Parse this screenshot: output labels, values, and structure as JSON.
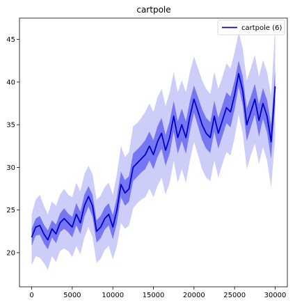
{
  "chart_data": {
    "type": "line",
    "title": "cartpole",
    "xlabel": "",
    "ylabel": "",
    "xlim": [
      -1500,
      31500
    ],
    "ylim": [
      16,
      47.5
    ],
    "x_ticks": [
      0,
      5000,
      10000,
      15000,
      20000,
      25000,
      30000
    ],
    "x_tick_labels": [
      "0",
      "5000",
      "10000",
      "15000",
      "20000",
      "25000",
      "30000"
    ],
    "y_ticks": [
      20,
      25,
      30,
      35,
      40,
      45
    ],
    "y_tick_labels": [
      "20",
      "25",
      "30",
      "35",
      "40",
      "45"
    ],
    "grid": false,
    "legend": {
      "placement": "top-right",
      "entries": [
        "cartpole (6)"
      ]
    },
    "colors": {
      "line": "#0000cc",
      "inner_band": "#5a5af0",
      "outer_band": "#c8c8f8"
    },
    "series": [
      {
        "name": "cartpole (6)",
        "x": [
          0,
          500,
          1000,
          1500,
          2000,
          2500,
          3000,
          3500,
          4000,
          4500,
          5000,
          5500,
          6000,
          6500,
          7000,
          7500,
          8000,
          8500,
          9000,
          9500,
          10000,
          10500,
          11000,
          11500,
          12000,
          12500,
          13000,
          13500,
          14000,
          14500,
          15000,
          15500,
          16000,
          16500,
          17000,
          17500,
          18000,
          18500,
          19000,
          19500,
          20000,
          20500,
          21000,
          21500,
          22000,
          22500,
          23000,
          23500,
          24000,
          24500,
          25000,
          25500,
          26000,
          26500,
          27000,
          27500,
          28000,
          28500,
          29000,
          29500,
          30000
        ],
        "mean": [
          21.8,
          23.0,
          23.2,
          22.2,
          21.5,
          22.8,
          22.2,
          23.5,
          24.0,
          23.5,
          23.0,
          24.5,
          23.5,
          25.5,
          26.6,
          25.5,
          22.5,
          23.0,
          24.0,
          24.5,
          23.0,
          25.0,
          28.0,
          27.0,
          27.5,
          30.0,
          30.5,
          31.0,
          31.5,
          32.5,
          31.5,
          33.0,
          34.0,
          32.0,
          33.5,
          36.0,
          33.5,
          35.0,
          33.5,
          36.0,
          38.0,
          36.5,
          35.0,
          34.0,
          33.5,
          36.0,
          34.0,
          35.5,
          37.0,
          36.5,
          38.5,
          41.0,
          39.0,
          35.0,
          36.5,
          38.0,
          35.5,
          37.5,
          36.0,
          33.0,
          39.5
        ],
        "inner_upper": [
          22.8,
          24.0,
          24.3,
          23.3,
          22.6,
          23.8,
          23.3,
          24.6,
          25.2,
          24.6,
          24.2,
          25.8,
          24.8,
          26.8,
          27.8,
          26.8,
          23.8,
          24.3,
          25.3,
          25.8,
          24.4,
          26.5,
          29.5,
          28.5,
          29.0,
          31.6,
          32.1,
          32.6,
          33.2,
          34.2,
          33.2,
          34.8,
          35.8,
          33.8,
          35.4,
          37.8,
          35.4,
          36.9,
          35.4,
          37.8,
          39.6,
          38.2,
          36.8,
          35.8,
          35.3,
          37.8,
          35.8,
          37.3,
          38.8,
          38.3,
          40.2,
          42.5,
          40.7,
          36.9,
          38.3,
          39.8,
          37.4,
          39.3,
          37.9,
          35.0,
          41.5
        ],
        "inner_lower": [
          20.8,
          22.0,
          22.1,
          21.1,
          20.4,
          21.8,
          21.1,
          22.4,
          22.8,
          22.4,
          21.8,
          23.2,
          22.2,
          24.2,
          25.4,
          24.2,
          21.2,
          21.7,
          22.7,
          23.2,
          21.6,
          23.5,
          26.5,
          25.5,
          26.0,
          28.4,
          28.9,
          29.4,
          29.8,
          30.8,
          29.8,
          31.2,
          32.2,
          30.2,
          31.6,
          34.2,
          31.6,
          33.1,
          31.6,
          34.2,
          36.4,
          34.8,
          33.2,
          32.2,
          31.7,
          34.2,
          32.2,
          33.7,
          35.2,
          34.7,
          36.8,
          39.5,
          37.3,
          33.1,
          34.7,
          36.2,
          33.6,
          35.7,
          34.1,
          31.0,
          37.5
        ],
        "outer_upper": [
          24.5,
          26.2,
          26.8,
          25.5,
          24.5,
          26.0,
          25.5,
          26.8,
          27.5,
          26.8,
          26.5,
          28.2,
          27.2,
          29.2,
          30.2,
          29.2,
          26.2,
          26.7,
          27.7,
          28.2,
          26.8,
          29.2,
          32.5,
          31.2,
          31.8,
          34.8,
          35.2,
          35.8,
          36.5,
          37.5,
          36.5,
          38.2,
          39.2,
          37.2,
          38.8,
          41.2,
          38.8,
          40.2,
          38.8,
          41.2,
          43.0,
          41.6,
          40.2,
          39.2,
          38.6,
          41.2,
          39.2,
          40.6,
          42.2,
          41.6,
          43.5,
          45.8,
          44.0,
          40.2,
          41.6,
          43.2,
          40.6,
          42.6,
          41.2,
          38.4,
          46.5
        ],
        "outer_lower": [
          18.5,
          19.6,
          19.4,
          18.8,
          18.0,
          19.6,
          18.9,
          20.2,
          20.5,
          20.2,
          19.5,
          20.8,
          19.8,
          21.8,
          23.0,
          21.8,
          18.8,
          19.3,
          20.3,
          20.8,
          19.2,
          20.8,
          23.5,
          22.8,
          23.2,
          25.2,
          25.8,
          26.2,
          26.5,
          27.5,
          26.5,
          27.8,
          28.8,
          26.8,
          28.2,
          30.8,
          28.2,
          29.8,
          28.2,
          30.8,
          33.0,
          31.4,
          29.8,
          28.8,
          28.4,
          30.8,
          28.8,
          30.4,
          31.8,
          31.4,
          33.5,
          36.2,
          34.0,
          29.8,
          31.4,
          32.8,
          30.4,
          32.4,
          30.8,
          27.6,
          33.5
        ]
      }
    ]
  }
}
